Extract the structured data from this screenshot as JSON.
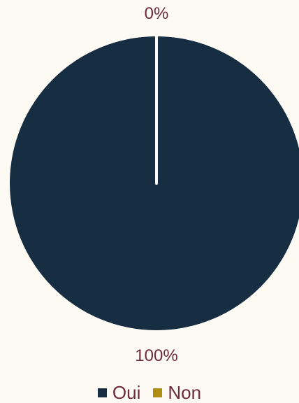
{
  "chart_data": {
    "type": "pie",
    "categories": [
      "Oui",
      "Non"
    ],
    "values": [
      100,
      0
    ],
    "labels": [
      "100%",
      "0%"
    ],
    "colors": [
      "#172d42",
      "#b08e14"
    ],
    "legend": "bottom"
  }
}
